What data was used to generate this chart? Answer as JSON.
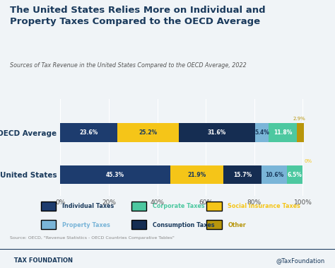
{
  "title": "The United States Relies More on Individual and\nProperty Taxes Compared to the OECD Average",
  "subtitle": "Sources of Tax Revenue in the United States Compared to the OECD Average, 2022",
  "background_color": "#f0f4f7",
  "categories": [
    "OECD Average",
    "United States"
  ],
  "segments": [
    {
      "label": "Individual Taxes",
      "color": "#1a3a5c",
      "values": [
        23.6,
        45.3
      ]
    },
    {
      "label": "Social Insurance Taxes",
      "color": "#f5c518",
      "values": [
        25.2,
        21.9
      ]
    },
    {
      "label": "Consumption Taxes",
      "color": "#1e3a5c",
      "values": [
        31.6,
        15.7
      ]
    },
    {
      "label": "Property Taxes",
      "color": "#7ab0d4",
      "values": [
        5.4,
        10.6
      ]
    },
    {
      "label": "Corporate Taxes",
      "color": "#4dc8a0",
      "values": [
        11.8,
        6.5
      ]
    },
    {
      "label": "Other",
      "color": "#b8960c",
      "values": [
        2.9,
        0.0
      ]
    }
  ],
  "legend_colors": {
    "Individual Taxes": "#1a3a5c",
    "Corporate Taxes": "#4dc8a0",
    "Social Insurance Taxes": "#f5c518",
    "Property Taxes": "#7ab0d4",
    "Consumption Taxes": "#1e3a5c",
    "Other": "#b8960c"
  },
  "source_text": "Source: OECD, \"Revenue Statistics - OECD Countries Comparative Tables\"",
  "footer_left": "TAX FOUNDATION",
  "footer_right": "@TaxFoundation",
  "title_color": "#1a3a5c",
  "subtitle_color": "#444444",
  "bar_height": 0.45,
  "xlim": [
    0,
    102
  ],
  "xticks": [
    0,
    20,
    40,
    60,
    80,
    100
  ]
}
